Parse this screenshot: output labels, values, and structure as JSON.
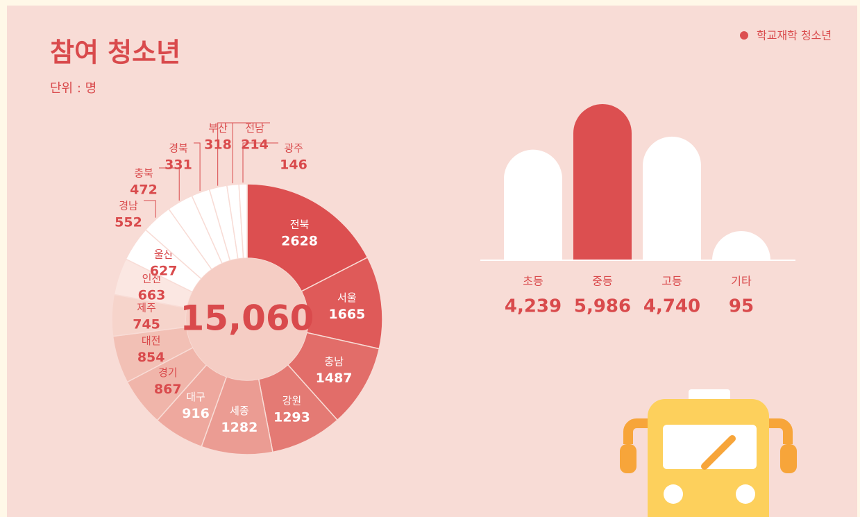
{
  "chart_data": [
    {
      "type": "pie",
      "title": "참여 청소년",
      "subtitle": "단위 : 명",
      "center_label": "15,060",
      "categories": [
        "전북",
        "서울",
        "충남",
        "강원",
        "세종",
        "대구",
        "경기",
        "대전",
        "제주",
        "인천",
        "울산",
        "경남",
        "충북",
        "경북",
        "부산",
        "전남",
        "광주"
      ],
      "values": [
        2628,
        1665,
        1487,
        1293,
        1282,
        916,
        867,
        854,
        745,
        663,
        627,
        552,
        472,
        331,
        318,
        214,
        146
      ],
      "colors": [
        "#dc4f50",
        "#df5a59",
        "#e26d69",
        "#e47a74",
        "#eb9c93",
        "#eea89e",
        "#f0b5aa",
        "#f2c0b5",
        "#f6d4cb",
        "#fbe7e2",
        "#ffffff",
        "#ffffff",
        "#ffffff",
        "#ffffff",
        "#ffffff",
        "#ffffff",
        "#ffffff"
      ]
    },
    {
      "type": "bar",
      "legend": "학교재학 청소년",
      "categories": [
        "초등",
        "중등",
        "고등",
        "기타"
      ],
      "values": [
        4239,
        5986,
        4740,
        95
      ],
      "value_labels": [
        "4,239",
        "5,986",
        "4,740",
        "95"
      ],
      "colors": [
        "#ffffff",
        "#dc4f50",
        "#ffffff",
        "#ffffff"
      ]
    }
  ]
}
